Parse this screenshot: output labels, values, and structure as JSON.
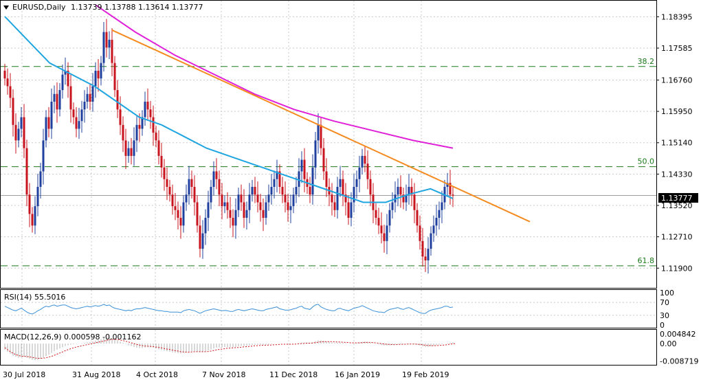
{
  "header": {
    "symbol": "EURUSD,Daily",
    "ohlc": "1.13739 1.13788 1.13614 1.13777"
  },
  "current_price_label": "1.13777",
  "chart_data": {
    "type": "candlestick",
    "main": {
      "ylim": [
        1.1155,
        1.1865
      ],
      "price_ticks": [
        "1.18395",
        "1.17585",
        "1.16760",
        "1.15950",
        "1.15140",
        "1.14330",
        "1.13520",
        "1.12710",
        "1.11900"
      ],
      "date_ticks": [
        "30 Jul 2018",
        "31 Aug 2018",
        "4 Oct 2018",
        "7 Nov 2018",
        "11 Dec 2018",
        "16 Jan 2019",
        "19 Feb 2019"
      ],
      "fib_levels": [
        {
          "label": "38.2",
          "value": 1.1711
        },
        {
          "label": "50.0",
          "value": 1.1452
        },
        {
          "label": "61.8",
          "value": 1.1196
        }
      ],
      "current_price": 1.13777,
      "bar_count": 168,
      "closes": [
        1.168,
        1.166,
        1.163,
        1.156,
        1.152,
        1.155,
        1.158,
        1.15,
        1.138,
        1.133,
        1.13,
        1.135,
        1.14,
        1.144,
        1.152,
        1.158,
        1.155,
        1.162,
        1.164,
        1.16,
        1.165,
        1.169,
        1.17,
        1.166,
        1.16,
        1.158,
        1.155,
        1.157,
        1.16,
        1.162,
        1.164,
        1.162,
        1.166,
        1.17,
        1.168,
        1.172,
        1.18,
        1.176,
        1.178,
        1.172,
        1.165,
        1.16,
        1.156,
        1.152,
        1.148,
        1.15,
        1.148,
        1.152,
        1.156,
        1.155,
        1.158,
        1.162,
        1.16,
        1.158,
        1.154,
        1.152,
        1.148,
        1.145,
        1.142,
        1.14,
        1.138,
        1.135,
        1.134,
        1.132,
        1.13,
        1.136,
        1.138,
        1.142,
        1.14,
        1.136,
        1.13,
        1.124,
        1.128,
        1.132,
        1.136,
        1.14,
        1.144,
        1.142,
        1.138,
        1.135,
        1.136,
        1.134,
        1.132,
        1.13,
        1.134,
        1.138,
        1.136,
        1.132,
        1.134,
        1.138,
        1.14,
        1.138,
        1.136,
        1.134,
        1.132,
        1.136,
        1.138,
        1.14,
        1.142,
        1.144,
        1.14,
        1.138,
        1.136,
        1.134,
        1.135,
        1.138,
        1.14,
        1.144,
        1.147,
        1.142,
        1.14,
        1.138,
        1.145,
        1.152,
        1.156,
        1.15,
        1.144,
        1.14,
        1.138,
        1.136,
        1.134,
        1.14,
        1.142,
        1.138,
        1.136,
        1.132,
        1.136,
        1.14,
        1.142,
        1.145,
        1.148,
        1.146,
        1.142,
        1.138,
        1.134,
        1.132,
        1.13,
        1.128,
        1.126,
        1.13,
        1.134,
        1.136,
        1.138,
        1.14,
        1.138,
        1.136,
        1.138,
        1.14,
        1.138,
        1.134,
        1.13,
        1.126,
        1.122,
        1.121,
        1.124,
        1.128,
        1.13,
        1.132,
        1.134,
        1.136,
        1.14,
        1.141,
        1.138,
        1.13777
      ],
      "ma_blue": {
        "from_bar": 0,
        "values": [
          1.184,
          1.178,
          1.172,
          1.169,
          1.166,
          1.162,
          1.158,
          1.156,
          1.153,
          1.15,
          1.148,
          1.146,
          1.144,
          1.142,
          1.14,
          1.138,
          1.136,
          1.136,
          1.138,
          1.1395,
          1.137
        ]
      },
      "ma_magenta": {
        "from_bar": 33,
        "values": [
          1.187,
          1.18,
          1.174,
          1.169,
          1.164,
          1.16,
          1.157,
          1.1545,
          1.152,
          1.15
        ]
      },
      "trendline": {
        "from_bar": 39,
        "from_value": 1.1805,
        "to_bar": 191,
        "to_value": 1.131
      }
    },
    "rsi": {
      "label": "RSI(14) 55.5016",
      "scale": [
        "100",
        "70",
        "30",
        "0"
      ],
      "levels": [
        70,
        30
      ],
      "values": [
        58,
        54,
        50,
        46,
        44,
        48,
        52,
        46,
        40,
        36,
        34,
        38,
        44,
        48,
        54,
        58,
        56,
        60,
        62,
        58,
        60,
        62,
        62,
        58,
        54,
        52,
        50,
        52,
        54,
        56,
        58,
        56,
        58,
        60,
        58,
        60,
        64,
        60,
        62,
        56,
        52,
        50,
        48,
        46,
        44,
        46,
        44,
        48,
        50,
        50,
        52,
        54,
        52,
        50,
        48,
        46,
        44,
        44,
        42,
        42,
        40,
        40,
        40,
        40,
        38,
        44,
        46,
        48,
        46,
        44,
        40,
        36,
        40,
        44,
        46,
        48,
        50,
        48,
        46,
        44,
        45,
        44,
        42,
        42,
        46,
        48,
        46,
        44,
        46,
        48,
        50,
        48,
        46,
        44,
        44,
        48,
        50,
        52,
        54,
        56,
        50,
        48,
        46,
        46,
        47,
        50,
        52,
        56,
        58,
        52,
        50,
        48,
        56,
        62,
        64,
        56,
        52,
        48,
        46,
        44,
        44,
        50,
        52,
        48,
        46,
        44,
        48,
        52,
        54,
        56,
        60,
        56,
        52,
        48,
        44,
        42,
        40,
        40,
        38,
        44,
        48,
        50,
        52,
        54,
        50,
        48,
        52,
        54,
        50,
        46,
        42,
        38,
        36,
        36,
        42,
        46,
        48,
        50,
        52,
        54,
        58,
        58,
        54,
        55.5
      ]
    },
    "macd": {
      "label": "MACD(12,26,9) 0.000598 -0.001162",
      "scale": [
        "0.004842",
        "0.00",
        "-0.008719"
      ],
      "ylim": [
        -0.0095,
        0.0055
      ],
      "histogram": [
        -0.003,
        -0.004,
        -0.005,
        -0.006,
        -0.0065,
        -0.007,
        -0.0068,
        -0.0066,
        -0.007,
        -0.0075,
        -0.008,
        -0.0082,
        -0.008,
        -0.0076,
        -0.007,
        -0.0062,
        -0.0055,
        -0.0046,
        -0.0038,
        -0.003,
        -0.0024,
        -0.0018,
        -0.0012,
        -0.0008,
        -0.0005,
        -0.0003,
        -0.0002,
        0.0,
        0.0002,
        0.0004,
        0.0006,
        0.0008,
        0.0011,
        0.0015,
        0.0018,
        0.0022,
        0.0028,
        0.003,
        0.0031,
        0.0028,
        0.0022,
        0.0016,
        0.001,
        0.0004,
        -0.0002,
        -0.0008,
        -0.0012,
        -0.0016,
        -0.002,
        -0.0022,
        -0.0022,
        -0.002,
        -0.0018,
        -0.0018,
        -0.002,
        -0.0024,
        -0.0028,
        -0.0032,
        -0.0035,
        -0.0038,
        -0.004,
        -0.0043,
        -0.0045,
        -0.0047,
        -0.0049,
        -0.0046,
        -0.0044,
        -0.004,
        -0.0038,
        -0.0037,
        -0.0039,
        -0.0042,
        -0.0041,
        -0.0038,
        -0.0034,
        -0.0029,
        -0.0024,
        -0.002,
        -0.0019,
        -0.0018,
        -0.0017,
        -0.0017,
        -0.0018,
        -0.0019,
        -0.0017,
        -0.0014,
        -0.0012,
        -0.0012,
        -0.0011,
        -0.0009,
        -0.0007,
        -0.0006,
        -0.0006,
        -0.0006,
        -0.0007,
        -0.0006,
        -0.0005,
        -0.0003,
        -0.0001,
        0.0001,
        0.0001,
        0.0,
        -0.0001,
        -0.0002,
        -0.0002,
        -0.0001,
        0.0,
        0.0003,
        0.0006,
        0.0006,
        0.0005,
        0.0004,
        0.0007,
        0.0012,
        0.0016,
        0.0016,
        0.0014,
        0.0011,
        0.0009,
        0.0006,
        0.0004,
        0.0005,
        0.0006,
        0.0004,
        0.0002,
        0.0,
        0.0,
        0.0002,
        0.0004,
        0.0007,
        0.0009,
        0.001,
        0.0008,
        0.0005,
        0.0002,
        -0.0001,
        -0.0004,
        -0.0007,
        -0.0009,
        -0.0009,
        -0.0008,
        -0.0006,
        -0.0004,
        -0.0002,
        -0.0002,
        -0.0002,
        -0.0001,
        0.0,
        0.0,
        -0.0002,
        -0.0005,
        -0.0009,
        -0.0013,
        -0.0016,
        -0.0016,
        -0.0014,
        -0.0011,
        -0.0008,
        -0.0005,
        -0.0002,
        0.0,
        0.0003,
        0.0005,
        0.000598
      ],
      "signal": [
        -0.002,
        -0.003,
        -0.004,
        -0.0048,
        -0.0054,
        -0.0059,
        -0.0062,
        -0.0063,
        -0.0064,
        -0.0066,
        -0.0068,
        -0.0071,
        -0.0073,
        -0.0073,
        -0.0072,
        -0.007,
        -0.0067,
        -0.0063,
        -0.0058,
        -0.0052,
        -0.0047,
        -0.0041,
        -0.0035,
        -0.003,
        -0.0025,
        -0.0021,
        -0.0017,
        -0.0014,
        -0.0011,
        -0.0008,
        -0.0005,
        -0.0002,
        0.0001,
        0.0004,
        0.0007,
        0.001,
        0.0013,
        0.0016,
        0.0019,
        0.0021,
        0.0021,
        0.002,
        0.0018,
        0.0015,
        0.0012,
        0.0008,
        0.0004,
        0.0,
        -0.0004,
        -0.0007,
        -0.001,
        -0.0012,
        -0.0013,
        -0.0014,
        -0.0015,
        -0.0017,
        -0.0019,
        -0.0021,
        -0.0024,
        -0.0027,
        -0.0029,
        -0.0032,
        -0.0035,
        -0.0037,
        -0.004,
        -0.0041,
        -0.0042,
        -0.0042,
        -0.0041,
        -0.004,
        -0.004,
        -0.004,
        -0.004,
        -0.004,
        -0.0039,
        -0.0037,
        -0.0034,
        -0.0031,
        -0.0029,
        -0.0027,
        -0.0025,
        -0.0023,
        -0.0022,
        -0.0021,
        -0.002,
        -0.0019,
        -0.0018,
        -0.0016,
        -0.0015,
        -0.0014,
        -0.0012,
        -0.0011,
        -0.001,
        -0.0009,
        -0.0008,
        -0.0008,
        -0.0007,
        -0.0007,
        -0.0006,
        -0.0005,
        -0.0004,
        -0.0003,
        -0.0003,
        -0.0003,
        -0.0003,
        -0.0003,
        -0.0002,
        -0.0001,
        0.0,
        0.0001,
        0.0002,
        0.0002,
        0.0003,
        0.0005,
        0.0007,
        0.0009,
        0.001,
        0.001,
        0.001,
        0.001,
        0.0009,
        0.0008,
        0.0008,
        0.0007,
        0.0006,
        0.0005,
        0.0004,
        0.0004,
        0.0004,
        0.0004,
        0.0005,
        0.0006,
        0.0006,
        0.0006,
        0.0005,
        0.0004,
        0.0002,
        0.0,
        -0.0002,
        -0.0003,
        -0.0004,
        -0.0005,
        -0.0005,
        -0.0004,
        -0.0004,
        -0.0003,
        -0.0003,
        -0.0002,
        -0.0002,
        -0.0002,
        -0.0003,
        -0.0004,
        -0.0006,
        -0.0008,
        -0.0009,
        -0.001,
        -0.001,
        -0.001,
        -0.0009,
        -0.0008,
        -0.0007,
        -0.0005,
        -0.0003,
        -0.0001,
        0.0,
        -0.001162
      ]
    }
  },
  "colors": {
    "bull": "#1f3f9e",
    "bear": "#c8141e",
    "ma_blue": "#1ea5e0",
    "ma_magenta": "#e020d8",
    "trendline": "#f58a1f",
    "fib": "#1a7a1a",
    "rsi": "#3a8fd6",
    "macd_hist": "#b0b0b0",
    "macd_signal": "#d01010",
    "grid": "#c8c8c8"
  }
}
